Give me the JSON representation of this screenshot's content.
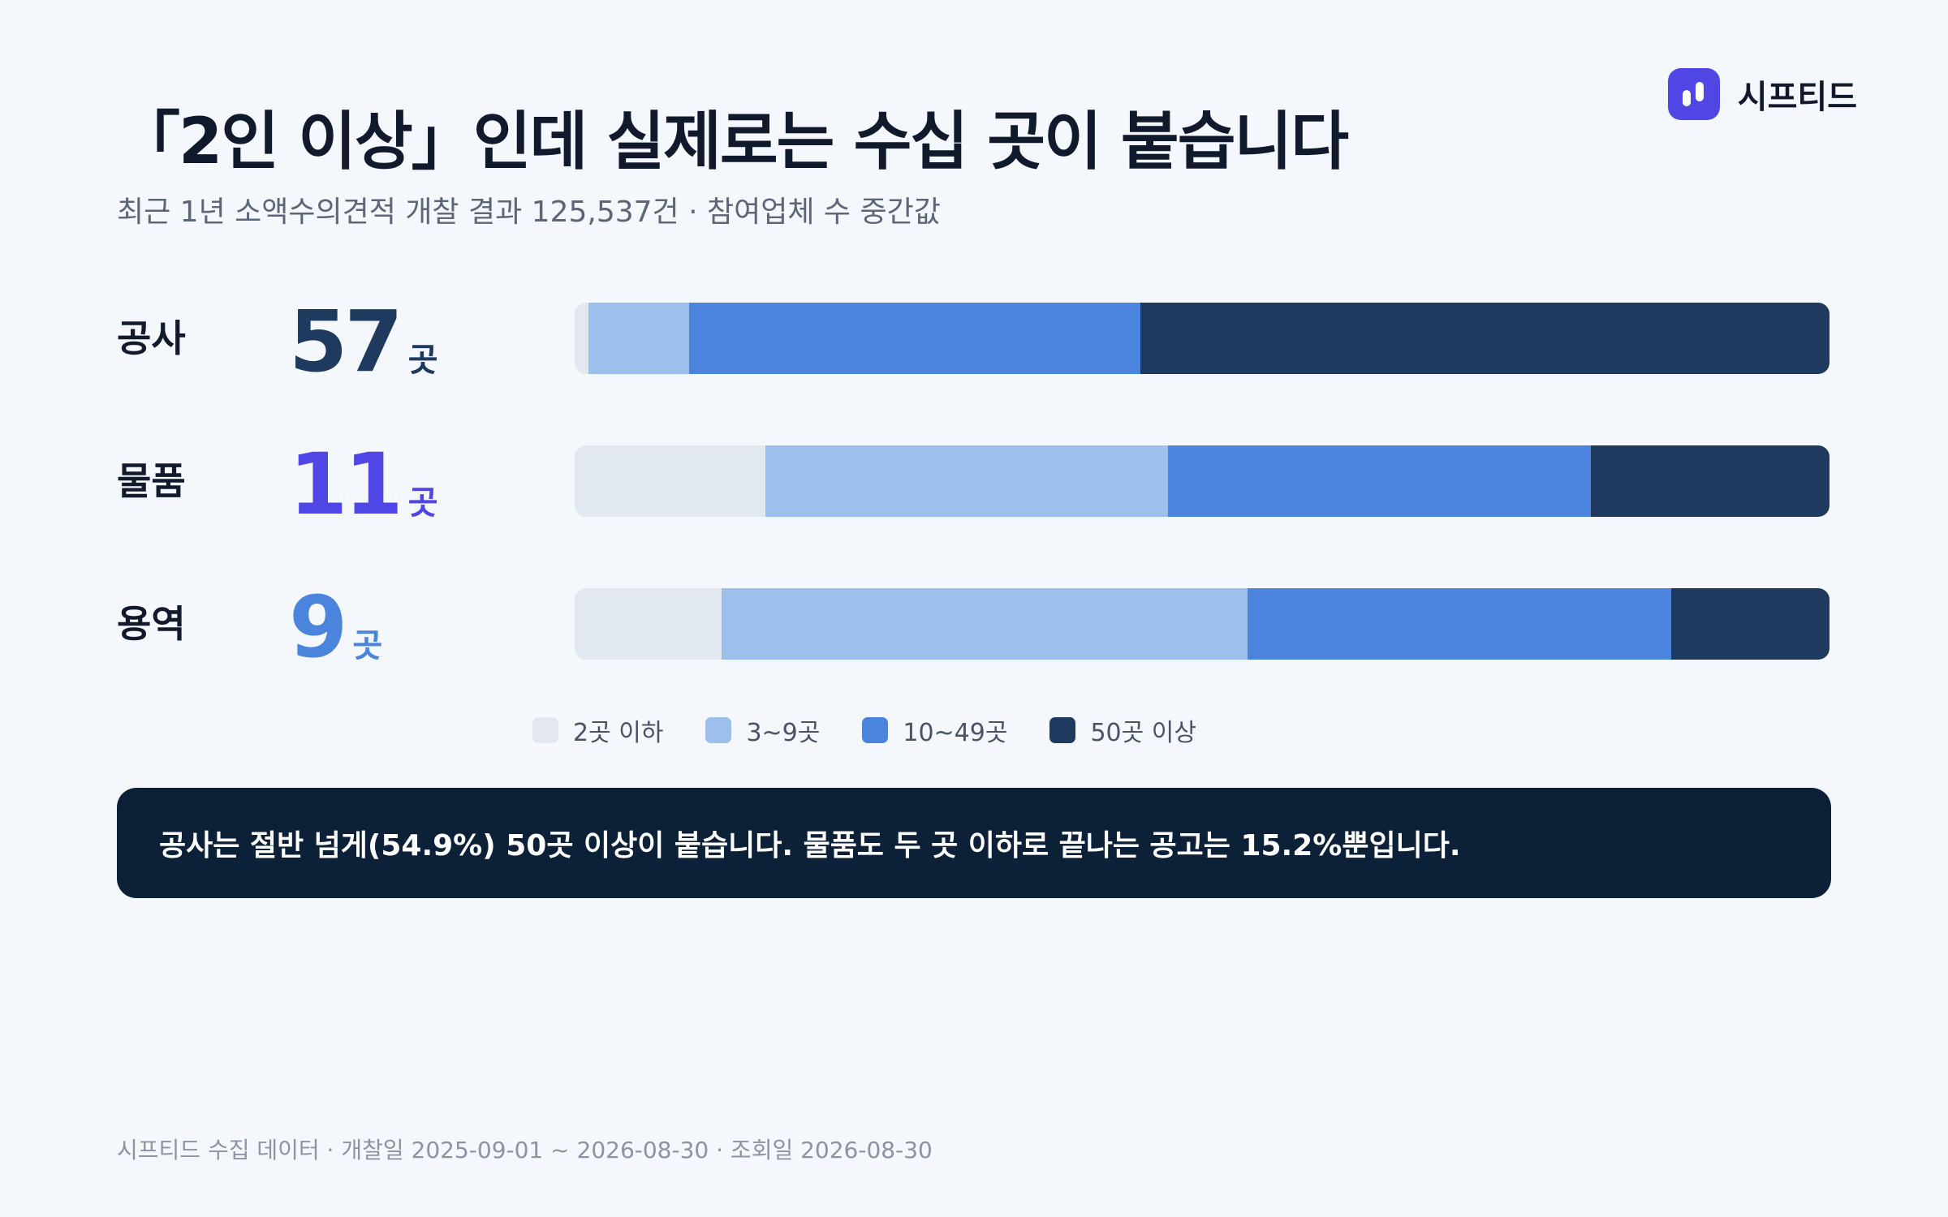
{
  "title": "「2인 이상」인데 실제로는 수십 곳이 붙습니다",
  "subtitle": "최근 1년 소액수의견적 개찰 결과 125,537건 · 참여업체 수 중간값",
  "brand": {
    "name": "시프티드",
    "icon": "brand-logo-icon",
    "color": "#4f46e5"
  },
  "chart_data": {
    "type": "bar",
    "stacked": true,
    "orientation": "horizontal",
    "normalized": "percent",
    "categories": [
      "공사",
      "물품",
      "용역"
    ],
    "medians": [
      {
        "value": "57",
        "unit": "곳",
        "color": "#1e3a5f"
      },
      {
        "value": "11",
        "unit": "곳",
        "color": "#4f46e5"
      },
      {
        "value": "9",
        "unit": "곳",
        "color": "#4a84dc"
      }
    ],
    "series": [
      {
        "name": "2곳 이하",
        "color": "#e2e8f0",
        "values": [
          1.1,
          15.2,
          11.7
        ]
      },
      {
        "name": "3~9곳",
        "color": "#9dbfec",
        "values": [
          8.0,
          32.1,
          41.9
        ]
      },
      {
        "name": "10~49곳",
        "color": "#4a84dc",
        "values": [
          36.0,
          33.7,
          33.8
        ]
      },
      {
        "name": "50곳 이상",
        "color": "#1e3a5f",
        "values": [
          54.9,
          19.0,
          12.6
        ]
      }
    ],
    "legend_position": "bottom"
  },
  "callout": "공사는 절반 넘게(54.9%) 50곳 이상이 붙습니다. 물품도 두 곳 이하로 끝나는 공고는 15.2%뿐입니다.",
  "footer": "시프티드 수집 데이터 · 개찰일 2025-09-01 ~ 2026-08-30 · 조회일 2026-08-30"
}
